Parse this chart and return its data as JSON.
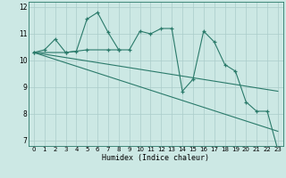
{
  "title": "",
  "xlabel": "Humidex (Indice chaleur)",
  "bg_color": "#cce8e4",
  "grid_color": "#aaccca",
  "line_color": "#2a7a6a",
  "xlim": [
    -0.5,
    23.5
  ],
  "ylim": [
    6.8,
    12.2
  ],
  "yticks": [
    7,
    8,
    9,
    10,
    11,
    12
  ],
  "xticks": [
    0,
    1,
    2,
    3,
    4,
    5,
    6,
    7,
    8,
    9,
    10,
    11,
    12,
    13,
    14,
    15,
    16,
    17,
    18,
    19,
    20,
    21,
    22,
    23
  ],
  "series": [
    {
      "x": [
        0,
        1,
        2,
        3,
        4,
        5,
        6,
        7,
        8,
        9,
        10,
        11,
        12,
        13,
        14,
        15,
        16,
        17,
        18,
        19,
        20,
        21,
        22,
        23
      ],
      "y": [
        10.3,
        10.4,
        10.8,
        10.3,
        10.35,
        11.55,
        11.8,
        11.05,
        10.4,
        10.4,
        11.1,
        11.0,
        11.2,
        11.2,
        8.85,
        9.3,
        11.1,
        10.7,
        9.85,
        9.6,
        8.45,
        8.1,
        8.1,
        6.65
      ],
      "marker": true
    },
    {
      "x": [
        0,
        3,
        5,
        7,
        8
      ],
      "y": [
        10.3,
        10.3,
        10.4,
        10.4,
        10.4
      ],
      "marker": true
    },
    {
      "x": [
        0,
        23
      ],
      "y": [
        10.3,
        8.85
      ],
      "marker": false
    },
    {
      "x": [
        0,
        23
      ],
      "y": [
        10.3,
        7.35
      ],
      "marker": false
    }
  ]
}
